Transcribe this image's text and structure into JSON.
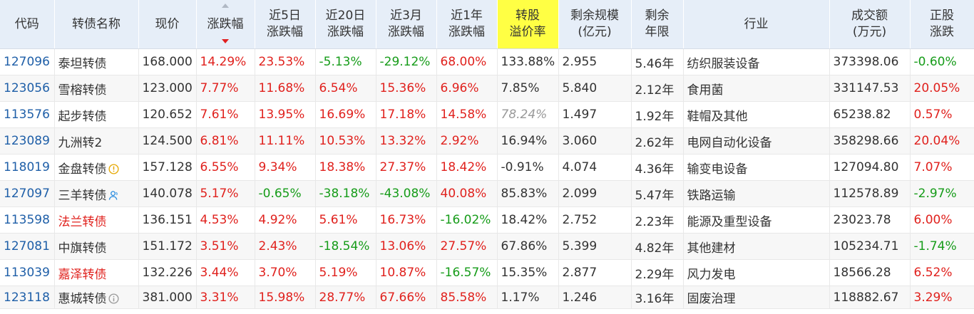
{
  "headers": [
    {
      "key": "code",
      "label": "代码"
    },
    {
      "key": "name",
      "label": "转债名称"
    },
    {
      "key": "price",
      "label": "现价"
    },
    {
      "key": "chg",
      "label": "涨跌幅",
      "sorted": "desc"
    },
    {
      "key": "chg5d",
      "label": "近5日\n涨跌幅"
    },
    {
      "key": "chg20d",
      "label": "近20日\n涨跌幅"
    },
    {
      "key": "chg3m",
      "label": "近3月\n涨跌幅"
    },
    {
      "key": "chg1y",
      "label": "近1年\n涨跌幅"
    },
    {
      "key": "premium",
      "label": "转股\n溢价率",
      "highlight": true
    },
    {
      "key": "scale",
      "label": "剩余规模\n(亿元)"
    },
    {
      "key": "years",
      "label": "剩余\n年限"
    },
    {
      "key": "industry",
      "label": "行业"
    },
    {
      "key": "turnover",
      "label": "成交额\n(万元)"
    },
    {
      "key": "stock_chg",
      "label": "正股\n涨跌"
    }
  ],
  "colors": {
    "up": "#e0211d",
    "down": "#169c19",
    "code": "#1f5fa8",
    "highlight": "#ffff44",
    "header_bg": "#e6eef8"
  },
  "rows": [
    {
      "code": "127096",
      "name": "泰坦转债",
      "price": "168.000",
      "chg": "14.29%",
      "chg5d": "23.53%",
      "chg20d": "-5.13%",
      "chg3m": "-29.12%",
      "chg1y": "68.00%",
      "premium": "133.88%",
      "scale": "2.955",
      "years": "5.46年",
      "industry": "纺织服装设备",
      "turnover": "373398.06",
      "stock_chg": "-0.60%"
    },
    {
      "code": "123056",
      "name": "雪榕转债",
      "price": "123.000",
      "chg": "7.77%",
      "chg5d": "11.68%",
      "chg20d": "6.54%",
      "chg3m": "15.36%",
      "chg1y": "6.96%",
      "premium": "7.85%",
      "scale": "5.840",
      "years": "2.12年",
      "industry": "食用菌",
      "turnover": "331147.53",
      "stock_chg": "20.05%"
    },
    {
      "code": "113576",
      "name": "起步转债",
      "price": "120.652",
      "chg": "7.61%",
      "chg5d": "13.95%",
      "chg20d": "16.69%",
      "chg3m": "17.18%",
      "chg1y": "14.58%",
      "premium": "78.24%",
      "premium_dim": true,
      "scale": "1.497",
      "years": "1.92年",
      "industry": "鞋帽及其他",
      "turnover": "65238.82",
      "stock_chg": "0.57%"
    },
    {
      "code": "123089",
      "name": "九洲转2",
      "price": "124.500",
      "chg": "6.81%",
      "chg5d": "11.11%",
      "chg20d": "10.53%",
      "chg3m": "13.32%",
      "chg1y": "2.92%",
      "premium": "16.94%",
      "scale": "3.060",
      "years": "2.62年",
      "industry": "电网自动化设备",
      "turnover": "358298.66",
      "stock_chg": "20.04%"
    },
    {
      "code": "118019",
      "name": "金盘转债",
      "name_icon": "exclamation-circle-icon",
      "price": "157.128",
      "chg": "6.55%",
      "chg5d": "9.34%",
      "chg20d": "18.38%",
      "chg3m": "27.37%",
      "chg1y": "18.42%",
      "premium": "-0.91%",
      "scale": "4.074",
      "years": "4.36年",
      "industry": "输变电设备",
      "turnover": "127094.80",
      "stock_chg": "7.07%"
    },
    {
      "code": "127097",
      "name": "三羊转债",
      "name_icon": "user-icon",
      "price": "140.078",
      "chg": "5.17%",
      "chg5d": "-0.65%",
      "chg20d": "-38.18%",
      "chg3m": "-43.08%",
      "chg1y": "40.08%",
      "premium": "85.83%",
      "scale": "2.099",
      "years": "5.47年",
      "industry": "铁路运输",
      "turnover": "112578.89",
      "stock_chg": "-2.97%"
    },
    {
      "code": "113598",
      "name": "法兰转债",
      "name_red": true,
      "price": "136.151",
      "chg": "4.53%",
      "chg5d": "4.92%",
      "chg20d": "5.61%",
      "chg3m": "16.73%",
      "chg1y": "-16.02%",
      "premium": "18.42%",
      "scale": "2.752",
      "years": "2.23年",
      "industry": "能源及重型设备",
      "turnover": "23023.78",
      "stock_chg": "6.00%"
    },
    {
      "code": "127081",
      "name": "中旗转债",
      "price": "151.172",
      "chg": "3.51%",
      "chg5d": "2.43%",
      "chg20d": "-18.54%",
      "chg3m": "13.06%",
      "chg1y": "27.57%",
      "premium": "67.86%",
      "scale": "5.399",
      "years": "4.82年",
      "industry": "其他建材",
      "turnover": "105234.71",
      "stock_chg": "-1.74%"
    },
    {
      "code": "113039",
      "name": "嘉泽转债",
      "name_red": true,
      "price": "132.226",
      "chg": "3.44%",
      "chg5d": "3.70%",
      "chg20d": "5.19%",
      "chg3m": "10.87%",
      "chg1y": "-16.57%",
      "premium": "15.35%",
      "scale": "2.877",
      "years": "2.29年",
      "industry": "风力发电",
      "turnover": "18566.28",
      "stock_chg": "6.52%"
    },
    {
      "code": "123118",
      "name": "惠城转债",
      "name_icon": "info-circle-icon",
      "price": "381.000",
      "chg": "3.31%",
      "chg5d": "15.98%",
      "chg20d": "28.77%",
      "chg3m": "67.66%",
      "chg1y": "85.58%",
      "premium": "1.17%",
      "scale": "1.246",
      "years": "3.16年",
      "industry": "固废治理",
      "turnover": "118882.67",
      "stock_chg": "3.29%"
    }
  ]
}
